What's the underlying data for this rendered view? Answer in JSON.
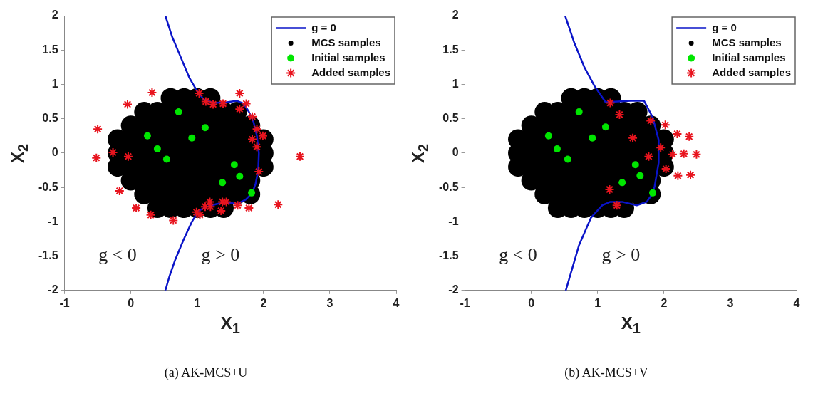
{
  "chart_data": [
    {
      "type": "scatter",
      "title": "(a) AK-MCS+U",
      "xlabel": "X$_{1}$",
      "ylabel": "X$_{2}$",
      "xlim": [
        -1,
        4
      ],
      "ylim": [
        -2,
        2
      ],
      "xticks": [
        -1,
        0,
        1,
        2,
        3,
        4
      ],
      "yticks": [
        -2,
        -1.5,
        -1,
        -0.5,
        0,
        0.5,
        1,
        1.5,
        2
      ],
      "grid": false,
      "legend": "top right",
      "annotations": [
        "g < 0",
        "g > 0"
      ],
      "series": [
        {
          "name": "g = 0",
          "type": "line",
          "color": "#0a14c8",
          "marker": "none",
          "line_style": "solid",
          "x": [
            0.52,
            0.62,
            0.75,
            0.88,
            1.0,
            1.1,
            1.25,
            1.45,
            1.6,
            1.7,
            1.78,
            1.85,
            1.9,
            1.93,
            1.92,
            1.88,
            1.83,
            1.73,
            1.6,
            1.45,
            1.3,
            1.15,
            1.02,
            0.92,
            0.8,
            0.67,
            0.58,
            0.52
          ],
          "values": [
            2,
            1.7,
            1.4,
            1.1,
            0.9,
            0.78,
            0.73,
            0.74,
            0.76,
            0.72,
            0.6,
            0.45,
            0.25,
            0,
            -0.25,
            -0.45,
            -0.58,
            -0.68,
            -0.74,
            -0.72,
            -0.74,
            -0.78,
            -0.84,
            -1.0,
            -1.25,
            -1.55,
            -1.8,
            -2
          ]
        },
        {
          "name": "MCS samples",
          "color": "#000000",
          "marker": "circle",
          "x": [
            0.6,
            0.8,
            1,
            1.2,
            0.2,
            0.4,
            0.6,
            0.8,
            1,
            1.2,
            1.4,
            1.6,
            0,
            0.2,
            0.4,
            0.6,
            0.8,
            1,
            1.2,
            1.4,
            1.6,
            1.8,
            -0.2,
            0,
            0.2,
            0.4,
            0.6,
            0.8,
            1,
            1.2,
            1.4,
            1.6,
            1.8,
            2,
            -0.2,
            0,
            0.2,
            0.4,
            0.6,
            0.8,
            1,
            1.2,
            1.4,
            1.6,
            1.8,
            2,
            -0.2,
            0,
            0.2,
            0.4,
            0.6,
            0.8,
            1,
            1.2,
            1.4,
            1.6,
            1.8,
            2,
            0,
            0.2,
            0.4,
            0.6,
            0.8,
            1,
            1.2,
            1.4,
            1.6,
            1.8,
            0.2,
            0.4,
            0.6,
            0.8,
            1,
            1.2,
            1.4,
            1.6,
            1.8,
            0.4,
            0.6,
            0.8,
            1,
            1.2,
            1.4
          ],
          "values": [
            0.8,
            0.8,
            0.8,
            0.8,
            0.6,
            0.6,
            0.6,
            0.6,
            0.6,
            0.6,
            0.6,
            0.6,
            0.4,
            0.4,
            0.4,
            0.4,
            0.4,
            0.4,
            0.4,
            0.4,
            0.4,
            0.4,
            0.2,
            0.2,
            0.2,
            0.2,
            0.2,
            0.2,
            0.2,
            0.2,
            0.2,
            0.2,
            0.2,
            0.2,
            0,
            0,
            0,
            0,
            0,
            0,
            0,
            0,
            0,
            0,
            0,
            0,
            -0.2,
            -0.2,
            -0.2,
            -0.2,
            -0.2,
            -0.2,
            -0.2,
            -0.2,
            -0.2,
            -0.2,
            -0.2,
            -0.2,
            -0.4,
            -0.4,
            -0.4,
            -0.4,
            -0.4,
            -0.4,
            -0.4,
            -0.4,
            -0.4,
            -0.4,
            -0.6,
            -0.6,
            -0.6,
            -0.6,
            -0.6,
            -0.6,
            -0.6,
            -0.6,
            -0.6,
            -0.8,
            -0.8,
            -0.8,
            -0.8,
            -0.8,
            -0.8
          ]
        },
        {
          "name": "Initial samples",
          "color": "#00e600",
          "marker": "circle",
          "x": [
            0.72,
            1.12,
            0.92,
            0.25,
            0.4,
            0.54,
            1.56,
            1.64,
            1.38,
            1.82
          ],
          "values": [
            0.6,
            0.37,
            0.22,
            0.25,
            0.06,
            -0.09,
            -0.17,
            -0.34,
            -0.43,
            -0.58
          ]
        },
        {
          "name": "Added samples",
          "color": "#e8141e",
          "marker": "cross",
          "x": [
            0.32,
            -0.05,
            -0.5,
            -0.52,
            -0.27,
            -0.04,
            2.55,
            1.03,
            1.13,
            1.24,
            1.39,
            1.64,
            1.74,
            1.64,
            1.83,
            1.9,
            1.99,
            1.83,
            1.9,
            1.93,
            -0.17,
            0.08,
            0.3,
            0.64,
            0.99,
            1.04,
            1.12,
            1.19,
            1.2,
            1.36,
            1.38,
            1.44,
            1.61,
            1.78,
            2.22
          ],
          "values": [
            0.88,
            0.71,
            0.35,
            -0.07,
            0.01,
            -0.05,
            -0.05,
            0.87,
            0.75,
            0.71,
            0.72,
            0.87,
            0.72,
            0.64,
            0.53,
            0.35,
            0.25,
            0.2,
            0.09,
            -0.27,
            -0.55,
            -0.8,
            -0.9,
            -0.98,
            -0.86,
            -0.9,
            -0.78,
            -0.71,
            -0.78,
            -0.84,
            -0.71,
            -0.71,
            -0.76,
            -0.8,
            -0.75
          ]
        }
      ]
    },
    {
      "type": "scatter",
      "title": "(b) AK-MCS+V",
      "xlabel": "X$_{1}$",
      "ylabel": "X$_{2}$",
      "xlim": [
        -1,
        4
      ],
      "ylim": [
        -2,
        2
      ],
      "xticks": [
        -1,
        0,
        1,
        2,
        3,
        4
      ],
      "yticks": [
        -2,
        -1.5,
        -1,
        -0.5,
        0,
        0.5,
        1,
        1.5,
        2
      ],
      "grid": false,
      "legend": "top right",
      "annotations": [
        "g < 0",
        "g > 0"
      ],
      "series": [
        {
          "name": "g = 0",
          "type": "line",
          "color": "#0a14c8",
          "marker": "none",
          "line_style": "solid",
          "x": [
            0.51,
            0.65,
            0.8,
            0.95,
            1.12,
            1.3,
            1.5,
            1.7,
            1.83,
            1.92,
            1.92,
            1.86,
            1.83,
            1.74,
            1.59,
            1.37,
            1.19,
            1.07,
            0.9,
            0.72,
            0.52
          ],
          "values": [
            2,
            1.6,
            1.25,
            0.98,
            0.74,
            0.75,
            0.76,
            0.76,
            0.52,
            0.19,
            -0.14,
            -0.48,
            -0.59,
            -0.71,
            -0.76,
            -0.71,
            -0.71,
            -0.76,
            -0.94,
            -1.34,
            -2
          ]
        },
        {
          "name": "MCS samples",
          "color": "#000000",
          "marker": "circle",
          "x": [
            0.6,
            0.8,
            1,
            1.2,
            0.2,
            0.4,
            0.6,
            0.8,
            1,
            1.2,
            1.4,
            1.6,
            0,
            0.2,
            0.4,
            0.6,
            0.8,
            1,
            1.2,
            1.4,
            1.6,
            1.8,
            -0.2,
            0,
            0.2,
            0.4,
            0.6,
            0.8,
            1,
            1.2,
            1.4,
            1.6,
            1.8,
            2,
            -0.2,
            0,
            0.2,
            0.4,
            0.6,
            0.8,
            1,
            1.2,
            1.4,
            1.6,
            1.8,
            2,
            -0.2,
            0,
            0.2,
            0.4,
            0.6,
            0.8,
            1,
            1.2,
            1.4,
            1.6,
            1.8,
            2,
            0,
            0.2,
            0.4,
            0.6,
            0.8,
            1,
            1.2,
            1.4,
            1.6,
            1.8,
            0.2,
            0.4,
            0.6,
            0.8,
            1,
            1.2,
            1.4,
            1.6,
            1.8,
            0.4,
            0.6,
            0.8,
            1,
            1.2,
            1.4
          ],
          "values": [
            0.8,
            0.8,
            0.8,
            0.8,
            0.6,
            0.6,
            0.6,
            0.6,
            0.6,
            0.6,
            0.6,
            0.6,
            0.4,
            0.4,
            0.4,
            0.4,
            0.4,
            0.4,
            0.4,
            0.4,
            0.4,
            0.4,
            0.2,
            0.2,
            0.2,
            0.2,
            0.2,
            0.2,
            0.2,
            0.2,
            0.2,
            0.2,
            0.2,
            0.2,
            0,
            0,
            0,
            0,
            0,
            0,
            0,
            0,
            0,
            0,
            0,
            0,
            -0.2,
            -0.2,
            -0.2,
            -0.2,
            -0.2,
            -0.2,
            -0.2,
            -0.2,
            -0.2,
            -0.2,
            -0.2,
            -0.2,
            -0.4,
            -0.4,
            -0.4,
            -0.4,
            -0.4,
            -0.4,
            -0.4,
            -0.4,
            -0.4,
            -0.4,
            -0.6,
            -0.6,
            -0.6,
            -0.6,
            -0.6,
            -0.6,
            -0.6,
            -0.6,
            -0.6,
            -0.8,
            -0.8,
            -0.8,
            -0.8,
            -0.8,
            -0.8
          ]
        },
        {
          "name": "Initial samples",
          "color": "#00e600",
          "marker": "circle",
          "x": [
            0.72,
            1.12,
            0.92,
            0.26,
            0.39,
            0.55,
            1.57,
            1.64,
            1.37,
            1.83
          ],
          "values": [
            0.6,
            0.38,
            0.22,
            0.25,
            0.06,
            -0.09,
            -0.17,
            -0.33,
            -0.43,
            -0.58
          ]
        },
        {
          "name": "Added samples",
          "color": "#e8141e",
          "marker": "cross",
          "x": [
            1.19,
            1.33,
            1.8,
            2.02,
            2.2,
            2.38,
            1.53,
            1.95,
            1.77,
            2.13,
            2.3,
            2.49,
            2.03,
            2.21,
            2.4,
            1.18,
            1.29
          ],
          "values": [
            0.73,
            0.56,
            0.47,
            0.41,
            0.28,
            0.24,
            0.22,
            0.08,
            -0.05,
            -0.02,
            -0.01,
            -0.02,
            -0.23,
            -0.33,
            -0.32,
            -0.53,
            -0.76
          ]
        }
      ]
    }
  ]
}
